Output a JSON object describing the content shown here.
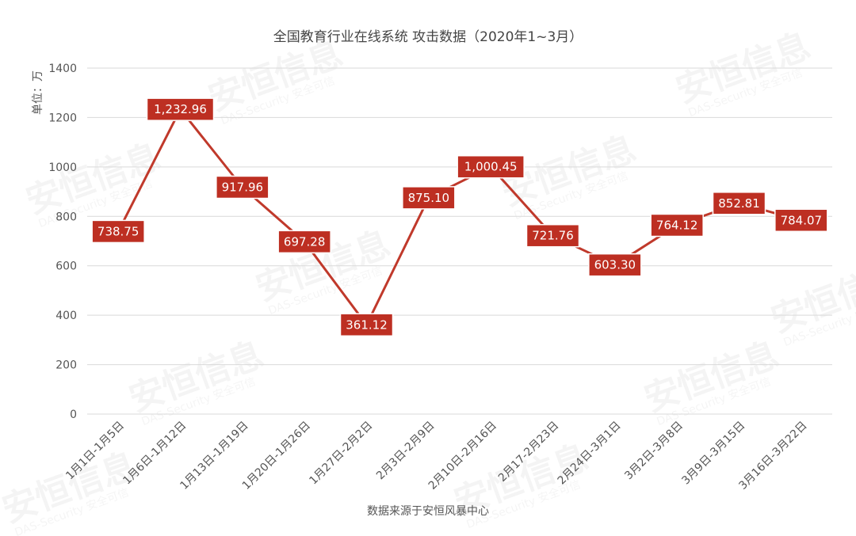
{
  "chart_data": {
    "type": "line",
    "title": "全国教育行业在线系统  攻击数据（2020年1~3月）",
    "ylabel": "单位：万",
    "xlabel": "数据来源于安恒风暴中心",
    "ylim": [
      0,
      1400
    ],
    "yticks": [
      0,
      200,
      400,
      600,
      800,
      1000,
      1200,
      1400
    ],
    "grid": true,
    "categories": [
      "1月1日-1月5日",
      "1月6日-1月12日",
      "1月13日-1月19日",
      "1月20日-1月26日",
      "1月27日-2月2日",
      "2月3日-2月9日",
      "2月10日-2月16日",
      "2月17-2月23日",
      "2月24日-3月1日",
      "3月2日-3月8日",
      "3月9日-3月15日",
      "3月16日-3月22日"
    ],
    "series": [
      {
        "values": [
          738.75,
          1232.96,
          917.96,
          697.28,
          361.12,
          875.1,
          1000.45,
          721.76,
          603.3,
          764.12,
          852.81,
          784.07
        ],
        "labels": [
          "738.75",
          "1,232.96",
          "917.96",
          "697.28",
          "361.12",
          "875.10",
          "1,000.45",
          "721.76",
          "603.30",
          "764.12",
          "852.81",
          "784.07"
        ],
        "color": "#c0392b"
      }
    ]
  },
  "watermark": {
    "brand": "安恒信息",
    "sub": "DAS-Security 安全可信"
  },
  "colors": {
    "line": "#c0392b",
    "label_fill": "#bd2f22",
    "grid": "#d9d9d9"
  }
}
